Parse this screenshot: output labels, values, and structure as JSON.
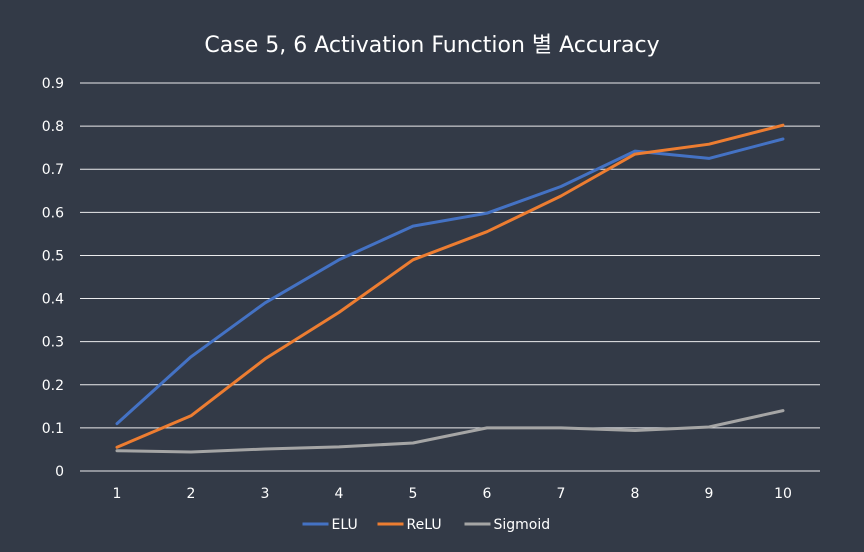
{
  "chart_data": {
    "type": "line",
    "title": "Case 5, 6 Activation Function 별 Accuracy",
    "xlabel": "",
    "ylabel": "",
    "x": [
      "1",
      "2",
      "3",
      "4",
      "5",
      "6",
      "7",
      "8",
      "9",
      "10"
    ],
    "ylim": [
      0,
      0.9
    ],
    "yticks": [
      "0",
      "0.1",
      "0.2",
      "0.3",
      "0.4",
      "0.5",
      "0.6",
      "0.7",
      "0.8",
      "0.9"
    ],
    "grid": true,
    "legend": "bottom",
    "series": [
      {
        "name": "ELU",
        "color": "#4472c4",
        "values": [
          0.11,
          0.265,
          0.39,
          0.49,
          0.568,
          0.598,
          0.66,
          0.742,
          0.725,
          0.77
        ]
      },
      {
        "name": "ReLU",
        "color": "#ed7d31",
        "values": [
          0.055,
          0.128,
          0.26,
          0.368,
          0.49,
          0.555,
          0.638,
          0.735,
          0.758,
          0.802
        ]
      },
      {
        "name": "Sigmoid",
        "color": "#a5a5a5",
        "values": [
          0.047,
          0.044,
          0.051,
          0.056,
          0.065,
          0.1,
          0.1,
          0.094,
          0.102,
          0.14
        ]
      }
    ]
  }
}
